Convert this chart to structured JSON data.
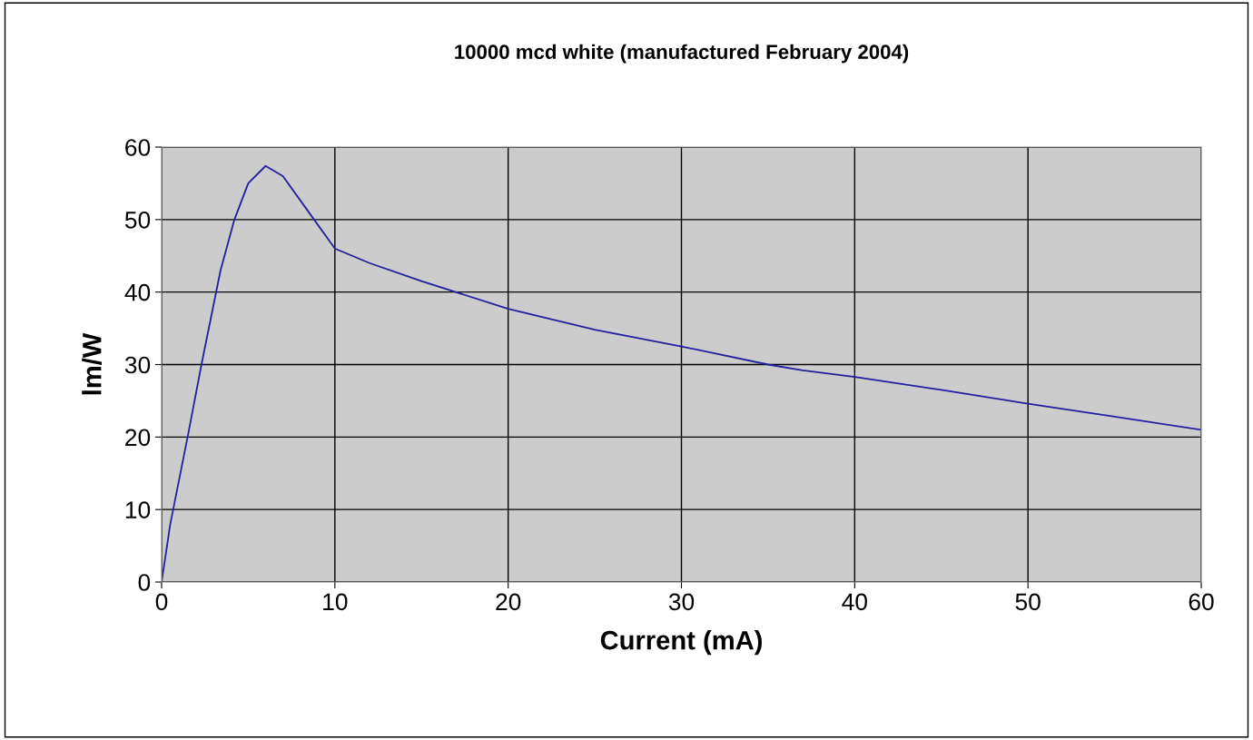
{
  "chart_data": {
    "type": "line",
    "title": "10000 mcd white (manufactured February 2004)",
    "xlabel": "Current (mA)",
    "ylabel": "lm/W",
    "x": [
      0,
      0.5,
      1.5,
      2.3,
      3.4,
      4.2,
      5,
      6,
      7,
      8.5,
      10,
      12,
      15,
      20,
      25,
      30,
      35,
      37,
      40,
      45,
      50,
      55,
      60
    ],
    "series": [
      {
        "color": "#2020a0",
        "values": [
          0,
          8,
          20,
          30,
          43,
          50,
          55,
          57.4,
          56,
          51,
          46,
          44,
          41.5,
          37.7,
          34.8,
          32.5,
          30,
          29.2,
          28.3,
          26.5,
          24.6,
          22.8,
          21
        ]
      }
    ],
    "xlim": [
      0,
      60
    ],
    "ylim": [
      0,
      60
    ],
    "xticks": [
      0,
      10,
      20,
      30,
      40,
      50,
      60
    ],
    "yticks": [
      0,
      10,
      20,
      30,
      40,
      50,
      60
    ],
    "grid": true,
    "legend": false,
    "marker": "none",
    "line_style": "solid"
  }
}
